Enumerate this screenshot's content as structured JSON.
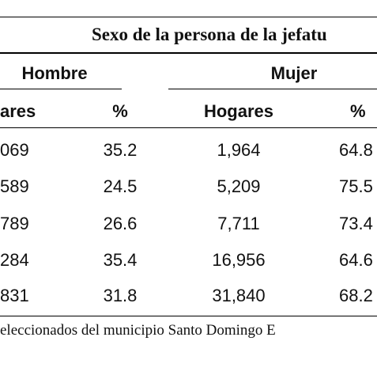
{
  "table": {
    "title": "Sexo de la persona de la jefatu",
    "groups": {
      "male": "Hombre",
      "female": "Mujer"
    },
    "columns": {
      "male_households": "ares",
      "male_percent": "%",
      "female_households": "Hogares",
      "female_percent": "%"
    },
    "rows": [
      {
        "male_households": "069",
        "male_percent": "35.2",
        "female_households": "1,964",
        "female_percent": "64.8"
      },
      {
        "male_households": "589",
        "male_percent": "24.5",
        "female_households": "5,209",
        "female_percent": "75.5"
      },
      {
        "male_households": "789",
        "male_percent": "26.6",
        "female_households": "7,711",
        "female_percent": "73.4"
      },
      {
        "male_households": "284",
        "male_percent": "35.4",
        "female_households": "16,956",
        "female_percent": "64.6"
      },
      {
        "male_households": "831",
        "male_percent": "31.8",
        "female_households": "31,840",
        "female_percent": "68.2"
      }
    ],
    "footnote": "eleccionados del municipio Santo Domingo E"
  }
}
